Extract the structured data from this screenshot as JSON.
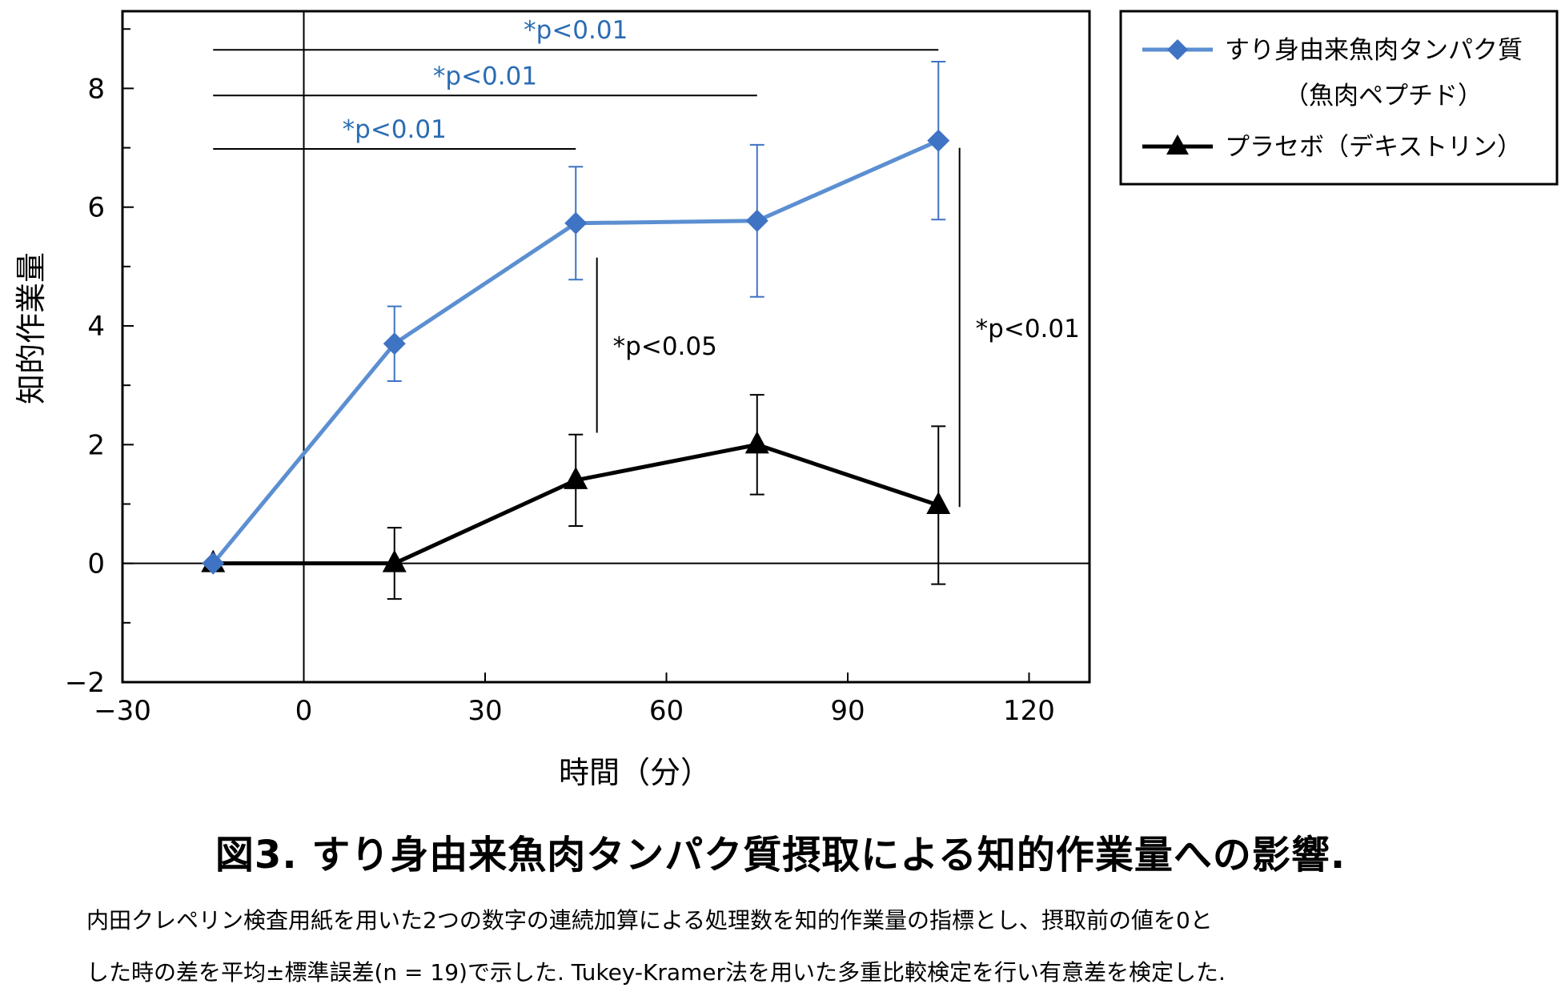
{
  "chart_data": {
    "type": "line",
    "xlabel": "時間（分）",
    "ylabel": "知的作業量",
    "xlim": [
      -30,
      130
    ],
    "ylim": [
      -2,
      9.3
    ],
    "xticks": [
      -30,
      0,
      30,
      60,
      90,
      120
    ],
    "xtick_labels": [
      "−30",
      "0",
      "30",
      "60",
      "90",
      "120"
    ],
    "yticks": [
      -2,
      0,
      2,
      4,
      6,
      8
    ],
    "ytick_labels": [
      "−2",
      "0",
      "2",
      "4",
      "6",
      "8"
    ],
    "series": [
      {
        "name": "すり身由来魚肉タンパク質",
        "name_line2": "（魚肉ペプチド）",
        "color": "#5b8fd1",
        "marker": "diamond",
        "x": [
          -15,
          15,
          45,
          75,
          105
        ],
        "y": [
          0,
          3.7,
          5.73,
          5.77,
          7.12
        ],
        "err": [
          0,
          0.63,
          0.95,
          1.28,
          1.33
        ]
      },
      {
        "name": "プラセボ（デキストリン）",
        "color": "#000000",
        "marker": "triangle",
        "x": [
          -15,
          15,
          45,
          75,
          105
        ],
        "y": [
          0,
          0,
          1.4,
          2.0,
          0.98
        ],
        "err": [
          0,
          0.6,
          0.77,
          0.84,
          1.33
        ]
      }
    ],
    "annotations": [
      {
        "text": "*p<0.01",
        "x1": -15,
        "x2": 105,
        "y": 8.65,
        "color": "#2a6cb3"
      },
      {
        "text": "*p<0.01",
        "x1": -15,
        "x2": 75,
        "y": 7.88,
        "color": "#2a6cb3"
      },
      {
        "text": "*p<0.01",
        "x1": -15,
        "x2": 45,
        "y": 6.98,
        "color": "#2a6cb3"
      },
      {
        "text": "*p<0.05",
        "x": 48.5,
        "y1": 2.2,
        "y2": 5.15,
        "color": "#000000"
      },
      {
        "text": "*p<0.01",
        "x": 108.5,
        "y1": 0.95,
        "y2": 7.0,
        "color": "#000000"
      }
    ]
  },
  "caption": {
    "title": "図3. すり身由来魚肉タンパク質摂取による知的作業量への影響.",
    "line1": "内田クレペリン検査用紙を用いた2つの数字の連続加算による処理数を知的作業量の指標とし、摂取前の値を0と",
    "line2": "した時の差を平均±標準誤差(n = 19)で示した. Tukey-Kramer法を用いた多重比較検定を行い有意差を検定した."
  }
}
